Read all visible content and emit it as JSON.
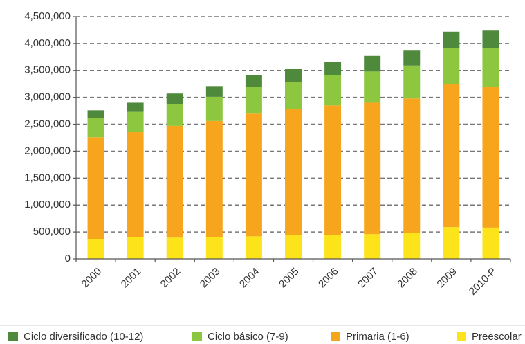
{
  "chart_data": {
    "type": "stacked_bar",
    "categories": [
      "2000",
      "2001",
      "2002",
      "2003",
      "2004",
      "2005",
      "2006",
      "2007",
      "2008",
      "2009",
      "2010-P"
    ],
    "series": [
      {
        "name": "Ciclo diversificado (10-12)",
        "color": "#4f8a3c",
        "values": [
          150000,
          170000,
          190000,
          200000,
          220000,
          250000,
          250000,
          290000,
          290000,
          300000,
          330000
        ]
      },
      {
        "name": "Ciclo básico (7-9)",
        "color": "#8dc63f",
        "values": [
          350000,
          370000,
          410000,
          450000,
          480000,
          490000,
          560000,
          580000,
          610000,
          680000,
          710000
        ]
      },
      {
        "name": "Primaria (1-6)",
        "color": "#f7a51c",
        "values": [
          1900000,
          1960000,
          2075000,
          2160000,
          2290000,
          2350000,
          2400000,
          2440000,
          2500000,
          2650000,
          2620000
        ]
      },
      {
        "name": "Preescolar",
        "color": "#fde31a",
        "values": [
          360000,
          400000,
          395000,
          400000,
          420000,
          440000,
          450000,
          460000,
          480000,
          590000,
          580000
        ]
      }
    ],
    "ylim": [
      0,
      4500000
    ],
    "yticks": [
      0,
      {
        "value": 500000,
        "label": "500,000"
      },
      {
        "value": 1000000,
        "label": "1,000,000"
      },
      {
        "value": 1500000,
        "label": "1,500,000"
      },
      {
        "value": 2000000,
        "label": "2,000,000"
      },
      {
        "value": 2500000,
        "label": "2,500,000"
      },
      {
        "value": 3000000,
        "label": "3,000,000"
      },
      {
        "value": 3500000,
        "label": "3,500,000"
      },
      {
        "value": 4000000,
        "label": "4,000,000"
      },
      {
        "value": 4500000,
        "label": "4,500,000"
      }
    ],
    "grid": true,
    "legend": "bottom"
  }
}
